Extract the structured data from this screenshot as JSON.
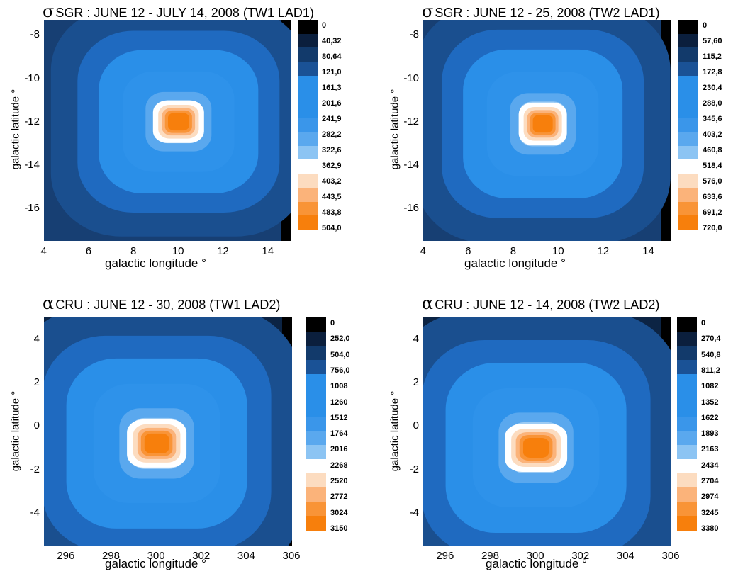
{
  "chart_data": [
    {
      "type": "heatmap",
      "symbol": "σ",
      "title": "SGR : JUNE 12 - JULY 14, 2008 (TW1 LAD1)",
      "xlabel": "galactic longitude °",
      "ylabel": "galactic latitude °",
      "xlim": [
        4,
        15
      ],
      "ylim": [
        -17.5,
        -7.3
      ],
      "xticks": [
        "4",
        "6",
        "8",
        "10",
        "12",
        "14"
      ],
      "yticks": [
        "-8",
        "-10",
        "-12",
        "-14",
        "-16"
      ],
      "colorbar_labels": [
        "0",
        "40,32",
        "80,64",
        "121,0",
        "161,3",
        "201,6",
        "241,9",
        "282,2",
        "322,6",
        "362,9",
        "403,2",
        "443,5",
        "483,8",
        "504,0"
      ],
      "colorbar_values": [
        0,
        40.32,
        80.64,
        121.0,
        161.3,
        201.6,
        241.9,
        282.2,
        322.6,
        362.9,
        403.2,
        443.5,
        483.8,
        504.0
      ],
      "source_peak": {
        "x": 10,
        "y": -12,
        "value": 504.0
      }
    },
    {
      "type": "heatmap",
      "symbol": "σ",
      "title": "SGR : JUNE 12 - 25, 2008 (TW2 LAD1)",
      "xlabel": "galactic longitude °",
      "ylabel": "galactic latitude °",
      "xlim": [
        4,
        15
      ],
      "ylim": [
        -17.5,
        -7.3
      ],
      "xticks": [
        "4",
        "6",
        "8",
        "10",
        "12",
        "14"
      ],
      "yticks": [
        "-8",
        "-10",
        "-12",
        "-14",
        "-16"
      ],
      "colorbar_labels": [
        "0",
        "57,60",
        "115,2",
        "172,8",
        "230,4",
        "288,0",
        "345,6",
        "403,2",
        "460,8",
        "518,4",
        "576,0",
        "633,6",
        "691,2",
        "720,0"
      ],
      "colorbar_values": [
        0,
        57.6,
        115.2,
        172.8,
        230.4,
        288.0,
        345.6,
        403.2,
        460.8,
        518.4,
        576.0,
        633.6,
        691.2,
        720.0
      ],
      "source_peak": {
        "x": 9.3,
        "y": -12.1,
        "value": 720.0
      }
    },
    {
      "type": "heatmap",
      "symbol": "α",
      "title": "CRU : JUNE 12 - 30, 2008 (TW1 LAD2)",
      "xlabel": "galactic longitude °",
      "ylabel": "galactic latitude °",
      "xlim": [
        295,
        306
      ],
      "ylim": [
        -5.5,
        5
      ],
      "xticks": [
        "296",
        "298",
        "300",
        "302",
        "304",
        "306"
      ],
      "yticks": [
        "4",
        "2",
        "0",
        "-2",
        "-4"
      ],
      "colorbar_labels": [
        "0",
        "252,0",
        "504,0",
        "756,0",
        "1008",
        "1260",
        "1512",
        "1764",
        "2016",
        "2268",
        "2520",
        "2772",
        "3024",
        "3150"
      ],
      "colorbar_values": [
        0,
        252,
        504,
        756,
        1008,
        1260,
        1512,
        1764,
        2016,
        2268,
        2520,
        2772,
        3024,
        3150
      ],
      "source_peak": {
        "x": 300,
        "y": -0.8,
        "value": 3150
      }
    },
    {
      "type": "heatmap",
      "symbol": "α",
      "title": "CRU : JUNE 12 - 14, 2008 (TW2 LAD2)",
      "xlabel": "galactic longitude °",
      "ylabel": "galactic latitude °",
      "xlim": [
        295,
        306
      ],
      "ylim": [
        -5.5,
        5
      ],
      "xticks": [
        "296",
        "298",
        "300",
        "302",
        "304",
        "306"
      ],
      "yticks": [
        "4",
        "2",
        "0",
        "-2",
        "-4"
      ],
      "colorbar_labels": [
        "0",
        "270,4",
        "540,8",
        "811,2",
        "1082",
        "1352",
        "1622",
        "1893",
        "2163",
        "2434",
        "2704",
        "2974",
        "3245",
        "3380"
      ],
      "colorbar_values": [
        0,
        270.4,
        540.8,
        811.2,
        1082,
        1352,
        1622,
        1893,
        2163,
        2434,
        2704,
        2974,
        3245,
        3380
      ],
      "source_peak": {
        "x": 300,
        "y": -1,
        "value": 3380
      }
    }
  ],
  "colorbar_colors": [
    "#000000",
    "#0b1f3d",
    "#123a6b",
    "#1a5296",
    "#2a8fe8",
    "#2a8fe8",
    "#2a8fe8",
    "#3a96ea",
    "#5aa8ee",
    "#8cc4f3",
    "#ffffff",
    "#fcdcc0",
    "#fbb37a",
    "#f99437",
    "#f77f0c"
  ]
}
